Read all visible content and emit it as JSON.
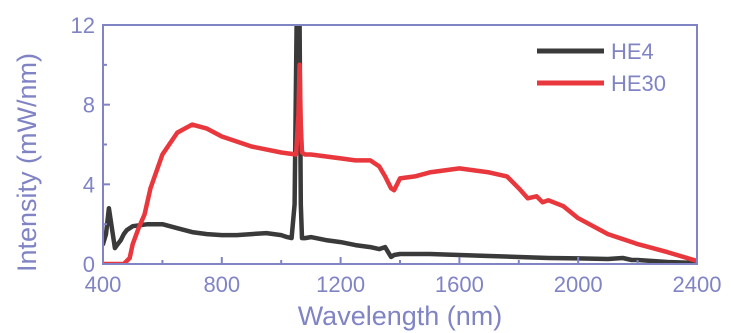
{
  "chart_data": {
    "type": "line",
    "title": "",
    "xlabel": "Wavelength (nm)",
    "ylabel": "Intensity (mW/nm)",
    "xlim": [
      400,
      2400
    ],
    "ylim": [
      0,
      12
    ],
    "xticks": [
      400,
      800,
      1200,
      1600,
      2000,
      2400
    ],
    "yticks": [
      0,
      4,
      8,
      12
    ],
    "grid": false,
    "legend_position": "top-right",
    "colors": {
      "axis": "#8084c4",
      "HE4": "#3a3a3a",
      "HE30": "#e8383d"
    },
    "series": [
      {
        "name": "HE4",
        "x": [
          400,
          410,
          420,
          430,
          440,
          450,
          460,
          470,
          480,
          500,
          550,
          600,
          650,
          700,
          750,
          800,
          850,
          900,
          950,
          1000,
          1020,
          1035,
          1045,
          1052,
          1055,
          1058,
          1062,
          1066,
          1070,
          1080,
          1100,
          1150,
          1200,
          1250,
          1300,
          1330,
          1350,
          1370,
          1380,
          1400,
          1500,
          1600,
          1700,
          1800,
          1900,
          2000,
          2100,
          2150,
          2180,
          2200,
          2300,
          2400
        ],
        "y": [
          1.0,
          1.5,
          2.8,
          1.8,
          0.8,
          1.0,
          1.2,
          1.5,
          1.7,
          1.9,
          2.0,
          2.0,
          1.8,
          1.6,
          1.5,
          1.45,
          1.45,
          1.5,
          1.55,
          1.45,
          1.35,
          1.3,
          3.0,
          12.0,
          12.0,
          12.0,
          12.0,
          3.0,
          1.3,
          1.3,
          1.35,
          1.2,
          1.1,
          0.95,
          0.85,
          0.75,
          0.85,
          0.35,
          0.45,
          0.5,
          0.5,
          0.45,
          0.4,
          0.35,
          0.3,
          0.28,
          0.25,
          0.3,
          0.2,
          0.2,
          0.1,
          0.05
        ]
      },
      {
        "name": "HE30",
        "x": [
          400,
          470,
          490,
          500,
          520,
          540,
          560,
          600,
          650,
          700,
          750,
          800,
          900,
          1000,
          1050,
          1058,
          1062,
          1066,
          1070,
          1080,
          1100,
          1200,
          1250,
          1300,
          1330,
          1350,
          1370,
          1380,
          1400,
          1450,
          1500,
          1600,
          1700,
          1760,
          1800,
          1830,
          1860,
          1880,
          1900,
          1950,
          2000,
          2100,
          2200,
          2300,
          2400
        ],
        "y": [
          0.0,
          0.0,
          0.3,
          1.0,
          1.8,
          2.5,
          3.8,
          5.5,
          6.6,
          7.0,
          6.8,
          6.4,
          5.9,
          5.6,
          5.5,
          7.5,
          10.0,
          7.0,
          5.6,
          5.5,
          5.5,
          5.3,
          5.2,
          5.2,
          4.9,
          4.4,
          3.8,
          3.7,
          4.3,
          4.4,
          4.6,
          4.8,
          4.6,
          4.4,
          3.8,
          3.3,
          3.4,
          3.1,
          3.2,
          2.9,
          2.3,
          1.5,
          1.0,
          0.6,
          0.15
        ]
      }
    ]
  }
}
